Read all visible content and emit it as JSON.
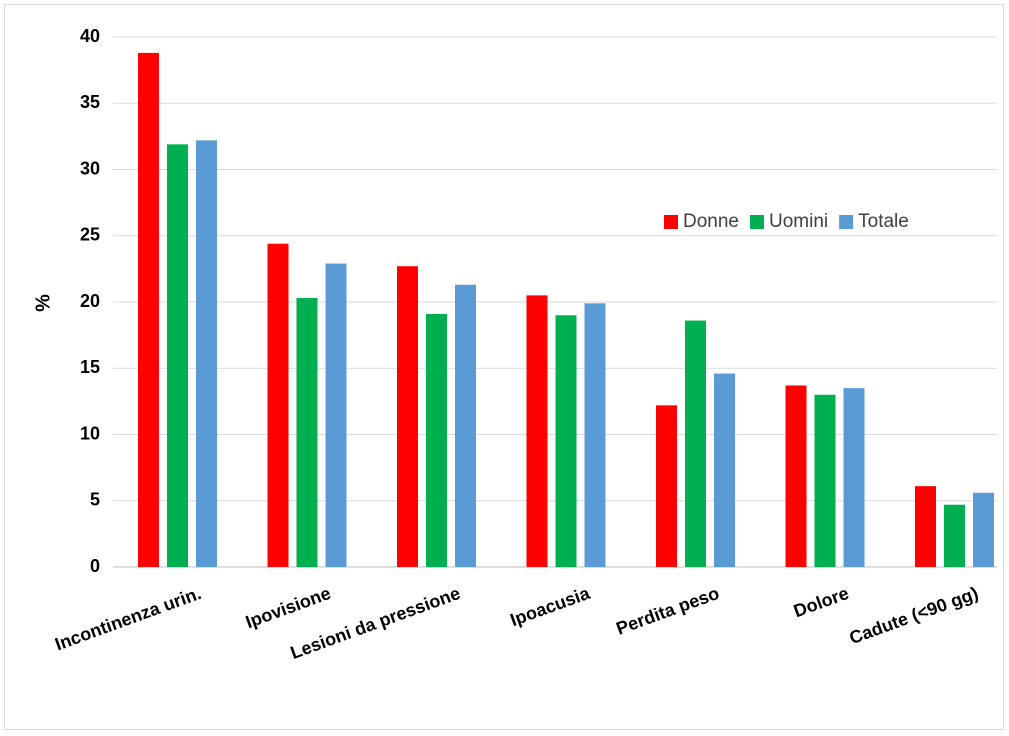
{
  "chart_data": {
    "type": "bar",
    "title": "",
    "xlabel": "",
    "ylabel": "%",
    "ylim": [
      0,
      40
    ],
    "yticks": [
      0,
      5,
      10,
      15,
      20,
      25,
      30,
      35,
      40
    ],
    "grid": true,
    "legend_position": "right",
    "categories": [
      "Incontinenza urin.",
      "Ipovisione",
      "Lesioni da pressione",
      "Ipoacusia",
      "Perdita peso",
      "Dolore",
      "Cadute (<90 gg)"
    ],
    "series": [
      {
        "name": "Donne",
        "color": "#ff0000",
        "values": [
          38.8,
          24.4,
          22.7,
          20.5,
          12.2,
          13.7,
          6.1
        ]
      },
      {
        "name": "Uomini",
        "color": "#00b050",
        "values": [
          31.9,
          20.3,
          19.1,
          19.0,
          18.6,
          13.0,
          4.7
        ]
      },
      {
        "name": "Totale",
        "color": "#5b9bd5",
        "values": [
          32.2,
          22.9,
          21.3,
          19.9,
          14.6,
          13.5,
          5.6
        ]
      }
    ]
  }
}
